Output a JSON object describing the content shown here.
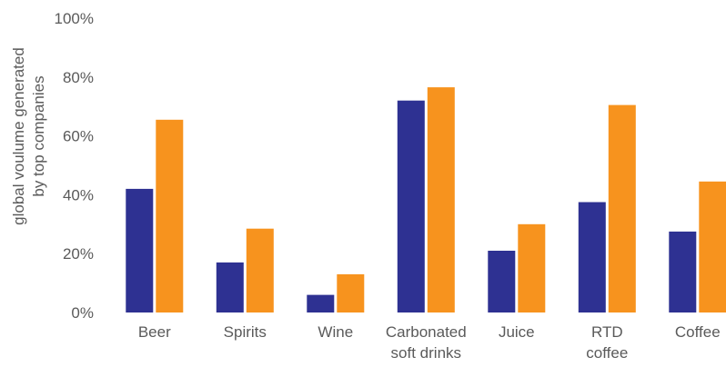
{
  "chart_data": {
    "type": "bar",
    "ylabel_lines": [
      "global voulume generated",
      "by top companies"
    ],
    "ylim": [
      0,
      100
    ],
    "yticks": [
      "0%",
      "20%",
      "40%",
      "60%",
      "80%",
      "100%"
    ],
    "ytick_values": [
      0,
      20,
      40,
      60,
      80,
      100
    ],
    "grid": false,
    "legend": "none",
    "categories": [
      [
        "Beer"
      ],
      [
        "Spirits"
      ],
      [
        "Wine"
      ],
      [
        "Carbonated",
        "soft drinks"
      ],
      [
        "Juice"
      ],
      [
        "RTD",
        "coffee"
      ],
      [
        "Coffee"
      ]
    ],
    "series": [
      {
        "color": "#2e3192",
        "values": [
          42,
          17,
          6,
          72,
          21,
          37.5,
          27.5
        ]
      },
      {
        "color": "#f7931e",
        "values": [
          65.5,
          28.5,
          13,
          76.5,
          30,
          70.5,
          44.5
        ]
      }
    ]
  }
}
